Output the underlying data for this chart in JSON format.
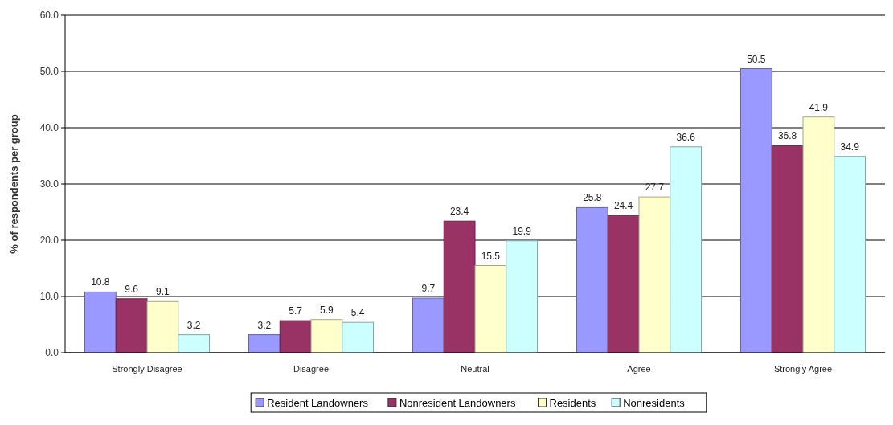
{
  "chart_data": {
    "type": "bar",
    "ylabel": "% of respondents per group",
    "categories": [
      "Strongly Disagree",
      "Disagree",
      "Neutral",
      "Agree",
      "Strongly Agree"
    ],
    "series": [
      {
        "name": "Resident Landowners",
        "color": "#9999ff",
        "values": [
          10.8,
          3.2,
          9.7,
          25.8,
          50.5
        ]
      },
      {
        "name": "Nonresident Landowners",
        "color": "#993366",
        "values": [
          9.6,
          5.7,
          23.4,
          24.4,
          36.8
        ]
      },
      {
        "name": "Residents",
        "color": "#ffffcc",
        "values": [
          9.1,
          5.9,
          15.5,
          27.7,
          41.9
        ]
      },
      {
        "name": "Nonresidents",
        "color": "#ccffff",
        "values": [
          3.2,
          5.4,
          19.9,
          36.6,
          34.9
        ]
      }
    ],
    "ylim": [
      0,
      60
    ],
    "yticks": [
      {
        "value": 0,
        "label": "0.0"
      },
      {
        "value": 10,
        "label": "10.0"
      },
      {
        "value": 20,
        "label": "20.0"
      },
      {
        "value": 30,
        "label": "30.0"
      },
      {
        "value": 40,
        "label": "40.0"
      },
      {
        "value": 50,
        "label": "50.0"
      },
      {
        "value": 60,
        "label": "60.0"
      }
    ],
    "grid": "y",
    "data_labels": true,
    "legend": "bottom"
  }
}
